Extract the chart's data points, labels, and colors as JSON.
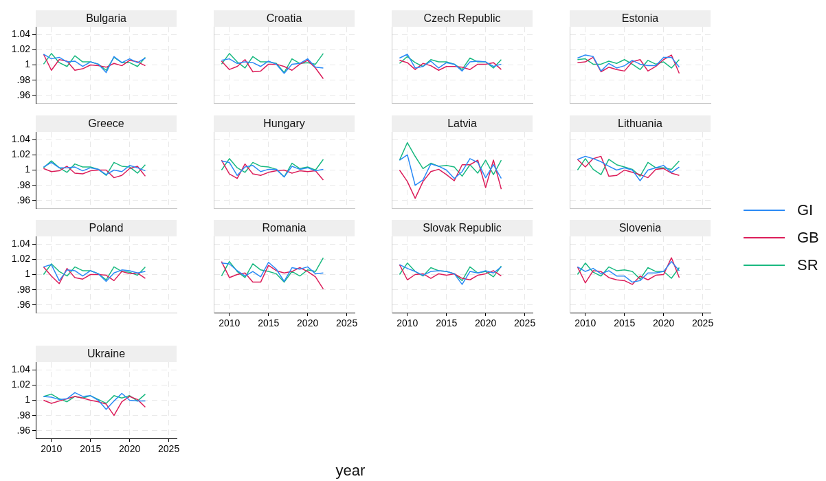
{
  "chart_data": [
    {
      "type": "line",
      "title": "Bulgaria",
      "legend": "right",
      "x": [
        2009,
        2010,
        2011,
        2012,
        2013,
        2014,
        2015,
        2016,
        2017,
        2018,
        2019,
        2020,
        2021,
        2022
      ],
      "xlim": [
        2008,
        2026
      ],
      "xticks": [
        {
          "value": 2010,
          "label": null
        },
        {
          "value": 2015,
          "label": null
        },
        {
          "value": 2020,
          "label": null
        },
        {
          "value": 2025,
          "label": null
        }
      ],
      "ylim": [
        0.95,
        1.05
      ],
      "yticks": [
        {
          "value": 0.96,
          "label": ".96"
        },
        {
          "value": 0.98,
          "label": ".98"
        },
        1,
        1.02,
        1.04
      ],
      "grid": true,
      "tick_labels": "y",
      "series": [
        {
          "name": "GI",
          "color": "#2a8af6",
          "values": [
            1.014,
            1.008,
            1.01,
            1.004,
            1.005,
            0.998,
            1.004,
            1.001,
            0.99,
            1.011,
            1.003,
            1.008,
            1.003,
            1.009
          ]
        },
        {
          "name": "GB",
          "color": "#dc1e5a",
          "values": [
            1.014,
            0.993,
            1.007,
            1.005,
            0.993,
            0.995,
            1.0,
            0.999,
            0.997,
            1.002,
            0.999,
            1.006,
            1.004,
            0.999
          ]
        },
        {
          "name": "SR",
          "color": "#19b980",
          "values": [
            1.001,
            1.015,
            1.003,
            0.998,
            1.012,
            1.004,
            1.004,
            1.001,
            0.993,
            1.01,
            1.003,
            1.003,
            0.998,
            1.01
          ]
        }
      ]
    },
    {
      "type": "line",
      "title": "Croatia",
      "x": [
        2009,
        2010,
        2011,
        2012,
        2013,
        2014,
        2015,
        2016,
        2017,
        2018,
        2019,
        2020,
        2021,
        2022
      ],
      "xlim": [
        2008,
        2026
      ],
      "xticks": [
        {
          "value": 2010,
          "label": null
        },
        {
          "value": 2015,
          "label": null
        },
        {
          "value": 2020,
          "label": null
        },
        {
          "value": 2025,
          "label": null
        }
      ],
      "ylim": [
        0.95,
        1.05
      ],
      "yticks": [
        {
          "value": 0.96,
          "label": null
        },
        {
          "value": 0.98,
          "label": null
        },
        {
          "value": 1,
          "label": null
        },
        {
          "value": 1.02,
          "label": null
        },
        {
          "value": 1.04,
          "label": null
        }
      ],
      "grid": true,
      "tick_labels": false,
      "series": [
        {
          "color": "#2a8af6",
          "values": [
            1.006,
            1.008,
            1.002,
            1.004,
            1.003,
            0.998,
            1.005,
            1.001,
            0.989,
            1.001,
            1.002,
            1.008,
            0.997,
            0.996
          ]
        },
        {
          "color": "#dc1e5a",
          "values": [
            1.005,
            0.994,
            0.998,
            1.007,
            0.991,
            0.992,
            1.001,
            1.001,
            0.998,
            0.993,
            1.001,
            1.006,
            0.996,
            0.982
          ]
        },
        {
          "color": "#19b980",
          "values": [
            1.001,
            1.015,
            1.004,
            0.996,
            1.011,
            1.004,
            1.004,
            1.002,
            0.99,
            1.008,
            1.002,
            1.003,
            1.001,
            1.015
          ]
        }
      ]
    },
    {
      "type": "line",
      "title": "Czech Republic",
      "x": [
        2009,
        2010,
        2011,
        2012,
        2013,
        2014,
        2015,
        2016,
        2017,
        2018,
        2019,
        2020,
        2021,
        2022
      ],
      "xlim": [
        2008,
        2026
      ],
      "xticks": [
        {
          "value": 2010,
          "label": null
        },
        {
          "value": 2015,
          "label": null
        },
        {
          "value": 2020,
          "label": null
        },
        {
          "value": 2025,
          "label": null
        }
      ],
      "ylim": [
        0.95,
        1.05
      ],
      "yticks": [
        {
          "value": 0.96,
          "label": null
        },
        {
          "value": 0.98,
          "label": null
        },
        {
          "value": 1,
          "label": null
        },
        {
          "value": 1.02,
          "label": null
        },
        {
          "value": 1.04,
          "label": null
        }
      ],
      "grid": true,
      "tick_labels": false,
      "series": [
        {
          "color": "#2a8af6",
          "values": [
            1.009,
            1.014,
            0.996,
            0.998,
            1.005,
            0.996,
            1.003,
            1.001,
            0.992,
            1.004,
            1.005,
            1.004,
            0.998,
            1.001
          ]
        },
        {
          "color": "#dc1e5a",
          "values": [
            1.006,
            1.003,
            0.994,
            1.002,
            0.999,
            0.993,
            0.998,
            0.998,
            0.997,
            0.994,
            1.001,
            1.001,
            1.003,
            0.994
          ]
        },
        {
          "color": "#19b980",
          "values": [
            1.002,
            1.011,
            1.003,
            0.998,
            1.007,
            1.004,
            1.004,
            1.001,
            0.994,
            1.009,
            1.004,
            1.004,
            0.996,
            1.007
          ]
        }
      ]
    },
    {
      "type": "line",
      "title": "Estonia",
      "x": [
        2009,
        2010,
        2011,
        2012,
        2013,
        2014,
        2015,
        2016,
        2017,
        2018,
        2019,
        2020,
        2021,
        2022
      ],
      "xlim": [
        2008,
        2026
      ],
      "xticks": [
        {
          "value": 2010,
          "label": null
        },
        {
          "value": 2015,
          "label": null
        },
        {
          "value": 2020,
          "label": null
        },
        {
          "value": 2025,
          "label": null
        }
      ],
      "ylim": [
        0.95,
        1.05
      ],
      "yticks": [
        {
          "value": 0.96,
          "label": null
        },
        {
          "value": 0.98,
          "label": null
        },
        {
          "value": 1,
          "label": null
        },
        {
          "value": 1.02,
          "label": null
        },
        {
          "value": 1.04,
          "label": null
        }
      ],
      "grid": true,
      "tick_labels": false,
      "series": [
        {
          "color": "#2a8af6",
          "values": [
            1.009,
            1.013,
            1.011,
            0.992,
            1.002,
            0.996,
            0.999,
            1.006,
            1.001,
            0.999,
            0.999,
            1.01,
            1.01,
            0.997
          ]
        },
        {
          "color": "#dc1e5a",
          "values": [
            1.003,
            1.004,
            1.01,
            0.991,
            0.997,
            0.994,
            0.992,
            1.004,
            1.007,
            0.992,
            0.998,
            1.007,
            1.013,
            0.989
          ]
        },
        {
          "color": "#19b980",
          "values": [
            1.007,
            1.008,
            1.001,
            1.001,
            1.005,
            1.002,
            1.007,
            1.001,
            0.994,
            1.006,
            1.001,
            1.004,
            0.996,
            1.007
          ]
        }
      ]
    },
    {
      "type": "line",
      "title": "Greece",
      "x": [
        2009,
        2010,
        2011,
        2012,
        2013,
        2014,
        2015,
        2016,
        2017,
        2018,
        2019,
        2020,
        2021,
        2022
      ],
      "xlim": [
        2008,
        2026
      ],
      "xticks": [
        {
          "value": 2010,
          "label": null
        },
        {
          "value": 2015,
          "label": null
        },
        {
          "value": 2020,
          "label": null
        },
        {
          "value": 2025,
          "label": null
        }
      ],
      "ylim": [
        0.95,
        1.05
      ],
      "yticks": [
        {
          "value": 0.96,
          "label": ".96"
        },
        {
          "value": 0.98,
          "label": ".98"
        },
        1,
        1.02,
        1.04
      ],
      "grid": true,
      "tick_labels": "y",
      "series": [
        {
          "color": "#2a8af6",
          "values": [
            1.004,
            1.01,
            1.003,
            1.003,
            1.004,
            0.999,
            1.003,
            1.001,
            0.994,
            1.0,
            0.998,
            1.006,
            1.003,
            0.999
          ]
        },
        {
          "color": "#dc1e5a",
          "values": [
            1.002,
            0.998,
            0.999,
            1.005,
            0.996,
            0.995,
            0.999,
            1.0,
            1.0,
            0.99,
            0.993,
            1.002,
            1.005,
            0.992
          ]
        },
        {
          "color": "#19b980",
          "values": [
            1.003,
            1.012,
            1.003,
            0.997,
            1.008,
            1.004,
            1.004,
            1.001,
            0.993,
            1.01,
            1.005,
            1.004,
            0.996,
            1.007
          ]
        }
      ]
    },
    {
      "type": "line",
      "title": "Hungary",
      "x": [
        2009,
        2010,
        2011,
        2012,
        2013,
        2014,
        2015,
        2016,
        2017,
        2018,
        2019,
        2020,
        2021,
        2022
      ],
      "xlim": [
        2008,
        2026
      ],
      "xticks": [
        {
          "value": 2010,
          "label": null
        },
        {
          "value": 2015,
          "label": null
        },
        {
          "value": 2020,
          "label": null
        },
        {
          "value": 2025,
          "label": null
        }
      ],
      "ylim": [
        0.95,
        1.05
      ],
      "yticks": [
        {
          "value": 0.96,
          "label": null
        },
        {
          "value": 0.98,
          "label": null
        },
        {
          "value": 1,
          "label": null
        },
        {
          "value": 1.02,
          "label": null
        },
        {
          "value": 1.04,
          "label": null
        }
      ],
      "grid": true,
      "tick_labels": false,
      "series": [
        {
          "color": "#2a8af6",
          "values": [
            1.012,
            1.01,
            0.993,
            1.004,
            1.006,
            0.998,
            1.001,
            1.001,
            0.991,
            1.005,
            1.001,
            1.003,
            0.999,
            1.001
          ]
        },
        {
          "color": "#dc1e5a",
          "values": [
            1.013,
            0.995,
            0.989,
            1.008,
            0.995,
            0.993,
            0.997,
            0.999,
            1.0,
            0.996,
            0.999,
            0.998,
            0.999,
            0.987
          ]
        },
        {
          "color": "#19b980",
          "values": [
            1.0,
            1.015,
            1.003,
            0.997,
            1.01,
            1.005,
            1.004,
            1.001,
            0.991,
            1.009,
            1.002,
            1.004,
            1.0,
            1.014
          ]
        }
      ]
    },
    {
      "type": "line",
      "title": "Latvia",
      "x": [
        2009,
        2010,
        2011,
        2012,
        2013,
        2014,
        2015,
        2016,
        2017,
        2018,
        2019,
        2020,
        2021,
        2022
      ],
      "xlim": [
        2008,
        2026
      ],
      "xticks": [
        {
          "value": 2010,
          "label": null
        },
        {
          "value": 2015,
          "label": null
        },
        {
          "value": 2020,
          "label": null
        },
        {
          "value": 2025,
          "label": null
        }
      ],
      "ylim": [
        0.95,
        1.05
      ],
      "yticks": [
        {
          "value": 0.96,
          "label": null
        },
        {
          "value": 0.98,
          "label": null
        },
        {
          "value": 1,
          "label": null
        },
        {
          "value": 1.02,
          "label": null
        },
        {
          "value": 1.04,
          "label": null
        }
      ],
      "grid": true,
      "tick_labels": false,
      "series": [
        {
          "color": "#2a8af6",
          "values": [
            1.013,
            1.02,
            0.98,
            0.987,
            1.008,
            1.005,
            1.0,
            0.989,
            0.998,
            1.015,
            1.01,
            0.99,
            1.007,
            0.989
          ]
        },
        {
          "color": "#dc1e5a",
          "values": [
            1.0,
            0.985,
            0.963,
            0.985,
            0.998,
            1.001,
            0.994,
            0.986,
            1.007,
            1.007,
            1.013,
            0.977,
            1.013,
            0.975
          ]
        },
        {
          "color": "#19b980",
          "values": [
            1.013,
            1.036,
            1.018,
            1.002,
            1.009,
            1.005,
            1.006,
            1.004,
            0.992,
            1.007,
            0.996,
            1.013,
            0.994,
            1.013
          ]
        }
      ]
    },
    {
      "type": "line",
      "title": "Lithuania",
      "x": [
        2009,
        2010,
        2011,
        2012,
        2013,
        2014,
        2015,
        2016,
        2017,
        2018,
        2019,
        2020,
        2021,
        2022
      ],
      "xlim": [
        2008,
        2026
      ],
      "xticks": [
        {
          "value": 2010,
          "label": null
        },
        {
          "value": 2015,
          "label": null
        },
        {
          "value": 2020,
          "label": null
        },
        {
          "value": 2025,
          "label": null
        }
      ],
      "ylim": [
        0.95,
        1.05
      ],
      "yticks": [
        {
          "value": 0.96,
          "label": null
        },
        {
          "value": 0.98,
          "label": null
        },
        {
          "value": 1,
          "label": null
        },
        {
          "value": 1.02,
          "label": null
        },
        {
          "value": 1.04,
          "label": null
        }
      ],
      "grid": true,
      "tick_labels": false,
      "series": [
        {
          "color": "#2a8af6",
          "values": [
            1.014,
            1.018,
            1.015,
            1.011,
            1.005,
            1.0,
            1.003,
            1.0,
            0.986,
            1.0,
            1.003,
            1.006,
            0.997,
            1.004
          ]
        },
        {
          "color": "#dc1e5a",
          "values": [
            1.014,
            1.004,
            1.015,
            1.018,
            0.992,
            0.993,
            1.0,
            0.997,
            0.994,
            0.99,
            1.001,
            1.002,
            0.996,
            0.993
          ]
        },
        {
          "color": "#19b980",
          "values": [
            1.0,
            1.015,
            1.001,
            0.994,
            1.014,
            1.007,
            1.004,
            1.001,
            0.992,
            1.01,
            1.003,
            1.003,
            1.001,
            1.012
          ]
        }
      ]
    },
    {
      "type": "line",
      "title": "Poland",
      "x": [
        2009,
        2010,
        2011,
        2012,
        2013,
        2014,
        2015,
        2016,
        2017,
        2018,
        2019,
        2020,
        2021,
        2022
      ],
      "xlim": [
        2008,
        2026
      ],
      "xticks": [
        {
          "value": 2010,
          "label": null
        },
        {
          "value": 2015,
          "label": null
        },
        {
          "value": 2020,
          "label": null
        },
        {
          "value": 2025,
          "label": null
        }
      ],
      "ylim": [
        0.95,
        1.05
      ],
      "yticks": [
        {
          "value": 0.96,
          "label": ".96"
        },
        {
          "value": 0.98,
          "label": ".98"
        },
        1,
        1.02,
        1.04
      ],
      "grid": true,
      "tick_labels": "y",
      "series": [
        {
          "color": "#2a8af6",
          "values": [
            1.01,
            1.013,
            0.992,
            1.006,
            1.005,
            0.998,
            1.005,
            1.001,
            0.991,
            1.002,
            1.006,
            1.005,
            1.002,
            1.004
          ]
        },
        {
          "color": "#dc1e5a",
          "values": [
            1.01,
            0.998,
            0.988,
            1.008,
            0.996,
            0.994,
            1.0,
            1.0,
            0.999,
            0.992,
            1.004,
            1.001,
            1.002,
            0.995
          ]
        },
        {
          "color": "#19b980",
          "values": [
            1.0,
            1.014,
            1.004,
            0.998,
            1.01,
            1.005,
            1.005,
            1.001,
            0.993,
            1.01,
            1.004,
            1.003,
            0.999,
            1.01
          ]
        }
      ]
    },
    {
      "type": "line",
      "title": "Romania",
      "xlabel": "year",
      "x": [
        2009,
        2010,
        2011,
        2012,
        2013,
        2014,
        2015,
        2016,
        2017,
        2018,
        2019,
        2020,
        2021,
        2022
      ],
      "xlim": [
        2008,
        2026
      ],
      "xticks": [
        2010,
        2015,
        2020,
        2025
      ],
      "ylim": [
        0.95,
        1.05
      ],
      "yticks": [
        {
          "value": 0.96,
          "label": null
        },
        {
          "value": 0.98,
          "label": null
        },
        {
          "value": 1,
          "label": null
        },
        {
          "value": 1.02,
          "label": null
        },
        {
          "value": 1.04,
          "label": null
        }
      ],
      "grid": true,
      "tick_labels": "x",
      "series": [
        {
          "color": "#2a8af6",
          "values": [
            1.015,
            1.014,
            1.005,
            0.998,
            1.004,
            0.997,
            1.016,
            1.007,
            0.991,
            1.009,
            1.007,
            1.01,
            1.001,
            1.002
          ]
        },
        {
          "color": "#dc1e5a",
          "values": [
            1.017,
            0.996,
            1.0,
            1.002,
            0.99,
            0.99,
            1.012,
            1.005,
            1.002,
            1.004,
            1.009,
            1.004,
            0.997,
            0.981
          ]
        },
        {
          "color": "#19b980",
          "values": [
            0.998,
            1.017,
            1.004,
            0.996,
            1.014,
            1.006,
            1.004,
            1.001,
            0.99,
            1.004,
            0.998,
            1.006,
            1.004,
            1.022
          ]
        }
      ]
    },
    {
      "type": "line",
      "title": "Slovak Republic",
      "x": [
        2009,
        2010,
        2011,
        2012,
        2013,
        2014,
        2015,
        2016,
        2017,
        2018,
        2019,
        2020,
        2021,
        2022
      ],
      "xlim": [
        2008,
        2026
      ],
      "xticks": [
        2010,
        2015,
        2020,
        2025
      ],
      "ylim": [
        0.95,
        1.05
      ],
      "yticks": [
        {
          "value": 0.96,
          "label": null
        },
        {
          "value": 0.98,
          "label": null
        },
        {
          "value": 1,
          "label": null
        },
        {
          "value": 1.02,
          "label": null
        },
        {
          "value": 1.04,
          "label": null
        }
      ],
      "grid": true,
      "tick_labels": "x",
      "series": [
        {
          "color": "#2a8af6",
          "values": [
            1.013,
            1.008,
            1.004,
            0.999,
            1.004,
            1.005,
            1.004,
            1.001,
            0.987,
            1.004,
            1.002,
            1.005,
            1.002,
            1.01
          ]
        },
        {
          "color": "#dc1e5a",
          "values": [
            1.013,
            0.993,
            1.0,
            1.001,
            0.995,
            1.001,
            0.999,
            1.001,
            0.995,
            0.993,
            0.999,
            1.001,
            1.005,
            0.998
          ]
        },
        {
          "color": "#19b980",
          "values": [
            1.0,
            1.015,
            1.004,
            0.998,
            1.009,
            1.005,
            1.004,
            1.001,
            0.992,
            1.01,
            1.002,
            1.004,
            0.997,
            1.011
          ]
        }
      ]
    },
    {
      "type": "line",
      "title": "Slovenia",
      "x": [
        2009,
        2010,
        2011,
        2012,
        2013,
        2014,
        2015,
        2016,
        2017,
        2018,
        2019,
        2020,
        2021,
        2022
      ],
      "xlim": [
        2008,
        2026
      ],
      "xticks": [
        2010,
        2015,
        2020,
        2025
      ],
      "ylim": [
        0.95,
        1.05
      ],
      "yticks": [
        {
          "value": 0.96,
          "label": null
        },
        {
          "value": 0.98,
          "label": null
        },
        {
          "value": 1,
          "label": null
        },
        {
          "value": 1.02,
          "label": null
        },
        {
          "value": 1.04,
          "label": null
        }
      ],
      "grid": true,
      "tick_labels": "x",
      "series": [
        {
          "color": "#2a8af6",
          "values": [
            1.01,
            1.004,
            1.008,
            1.001,
            1.005,
            0.998,
            0.998,
            0.99,
            0.992,
            1.002,
            1.002,
            1.004,
            1.017,
            1.005
          ]
        },
        {
          "color": "#dc1e5a",
          "values": [
            1.01,
            0.989,
            1.005,
            1.004,
            0.996,
            0.993,
            0.992,
            0.987,
            0.998,
            0.993,
            0.999,
            1.0,
            1.022,
            0.996
          ]
        },
        {
          "color": "#19b980",
          "values": [
            1.0,
            1.015,
            1.003,
            0.998,
            1.01,
            1.005,
            1.006,
            1.004,
            0.994,
            1.009,
            1.004,
            1.004,
            0.995,
            1.009
          ]
        }
      ]
    },
    {
      "type": "line",
      "title": "Ukraine",
      "x": [
        2009,
        2010,
        2011,
        2012,
        2013,
        2014,
        2015,
        2016,
        2017,
        2018,
        2019,
        2020,
        2021,
        2022
      ],
      "xlim": [
        2008,
        2026
      ],
      "xticks": [
        2010,
        2015,
        2020,
        2025
      ],
      "ylim": [
        0.95,
        1.05
      ],
      "yticks": [
        {
          "value": 0.96,
          "label": ".96"
        },
        {
          "value": 0.98,
          "label": ".98"
        },
        1,
        1.02,
        1.04
      ],
      "grid": true,
      "series": [
        {
          "color": "#2a8af6",
          "values": [
            1.005,
            1.004,
            1.001,
            1.002,
            1.01,
            1.005,
            1.006,
            1.0,
            0.988,
            0.999,
            1.009,
            1.0,
            0.999,
            0.999
          ]
        },
        {
          "color": "#dc1e5a",
          "values": [
            1.0,
            0.996,
            0.999,
            1.002,
            1.005,
            1.003,
            1.0,
            0.998,
            0.995,
            0.98,
            0.998,
            1.005,
            1.001,
            0.991
          ]
        },
        {
          "color": "#19b980",
          "values": [
            1.005,
            1.008,
            1.002,
            0.998,
            1.005,
            1.003,
            1.006,
            1.001,
            0.996,
            1.006,
            1.003,
            1.006,
            0.999,
            1.008
          ]
        }
      ]
    }
  ]
}
